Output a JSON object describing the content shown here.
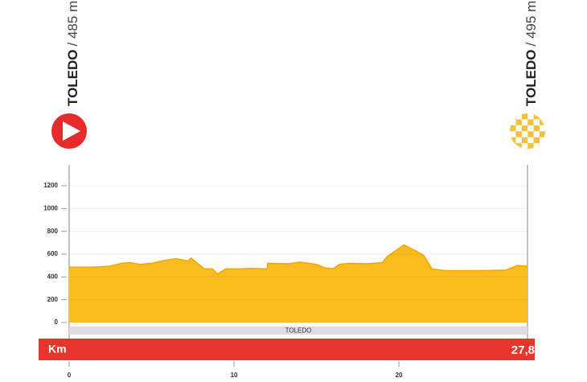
{
  "chart_data": {
    "type": "area",
    "start": {
      "name": "TOLEDO",
      "altitude": "/ 485 m."
    },
    "finish": {
      "name": "TOLEDO",
      "altitude": "/ 495 m."
    },
    "places": [
      "TOLEDO"
    ],
    "x_axis_label": "Km",
    "distance": "27,8",
    "x": [
      0,
      1.5,
      2.5,
      3.2,
      3.7,
      4.3,
      5,
      5.8,
      6.5,
      7.2,
      7.4,
      8.2,
      8.7,
      9,
      9.5,
      10.5,
      11,
      12,
      12.05,
      13.3,
      14,
      14.5,
      15,
      15.5,
      16,
      16.4,
      17,
      18,
      19,
      19.3,
      19.8,
      20.3,
      21,
      21.5,
      22,
      22.8,
      24,
      25,
      26.5,
      27.2,
      27.8
    ],
    "values": [
      485,
      485,
      495,
      520,
      525,
      510,
      520,
      545,
      560,
      540,
      565,
      470,
      470,
      425,
      470,
      470,
      475,
      470,
      520,
      515,
      530,
      520,
      510,
      480,
      470,
      510,
      520,
      515,
      525,
      580,
      630,
      680,
      630,
      590,
      470,
      455,
      455,
      455,
      460,
      500,
      495
    ],
    "color": "#fbbd1e",
    "xlim": [
      0,
      27.8
    ],
    "xticks": [
      0,
      10,
      20
    ],
    "ylim": [
      0,
      1200
    ],
    "yticks": [
      0,
      200,
      400,
      600,
      800,
      1000,
      1200
    ],
    "grid": true
  }
}
